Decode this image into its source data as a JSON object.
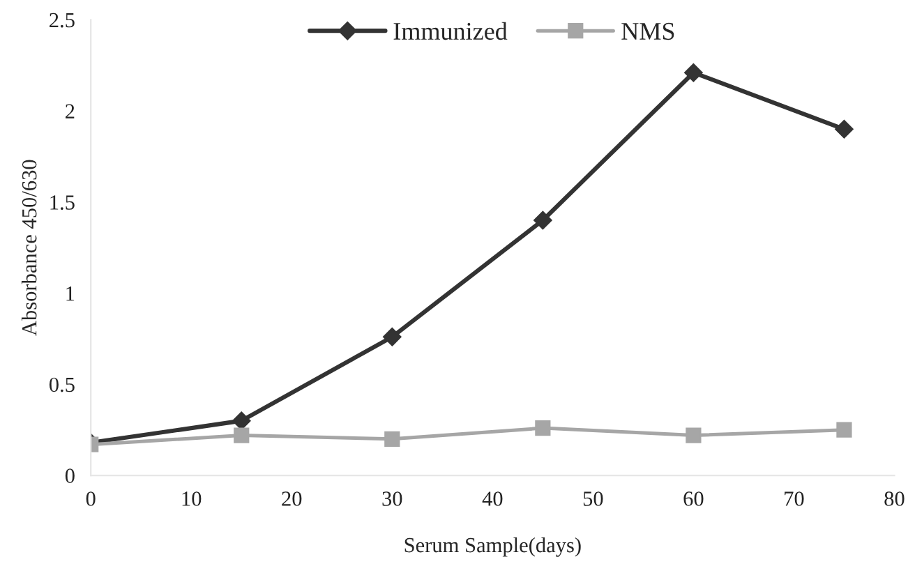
{
  "chart_data": {
    "type": "line",
    "xlabel": "Serum Sample(days)",
    "ylabel": "Absorbance 450/630",
    "x": [
      0,
      15,
      30,
      45,
      60,
      75
    ],
    "series": [
      {
        "name": "Immunized",
        "color": "#333333",
        "marker": "diamond",
        "values": [
          0.18,
          0.3,
          0.76,
          1.4,
          2.21,
          1.9
        ]
      },
      {
        "name": "NMS",
        "color": "#a6a6a6",
        "marker": "square",
        "values": [
          0.17,
          0.22,
          0.2,
          0.26,
          0.22,
          0.25
        ]
      }
    ],
    "xlim": [
      0,
      80
    ],
    "xticks": [
      0,
      10,
      20,
      30,
      40,
      50,
      60,
      70,
      80
    ],
    "ylim": [
      0,
      2.5
    ],
    "yticks": [
      0,
      0.5,
      1,
      1.5,
      2,
      2.5
    ],
    "grid": false,
    "legend": "top",
    "line_style": "solid"
  }
}
